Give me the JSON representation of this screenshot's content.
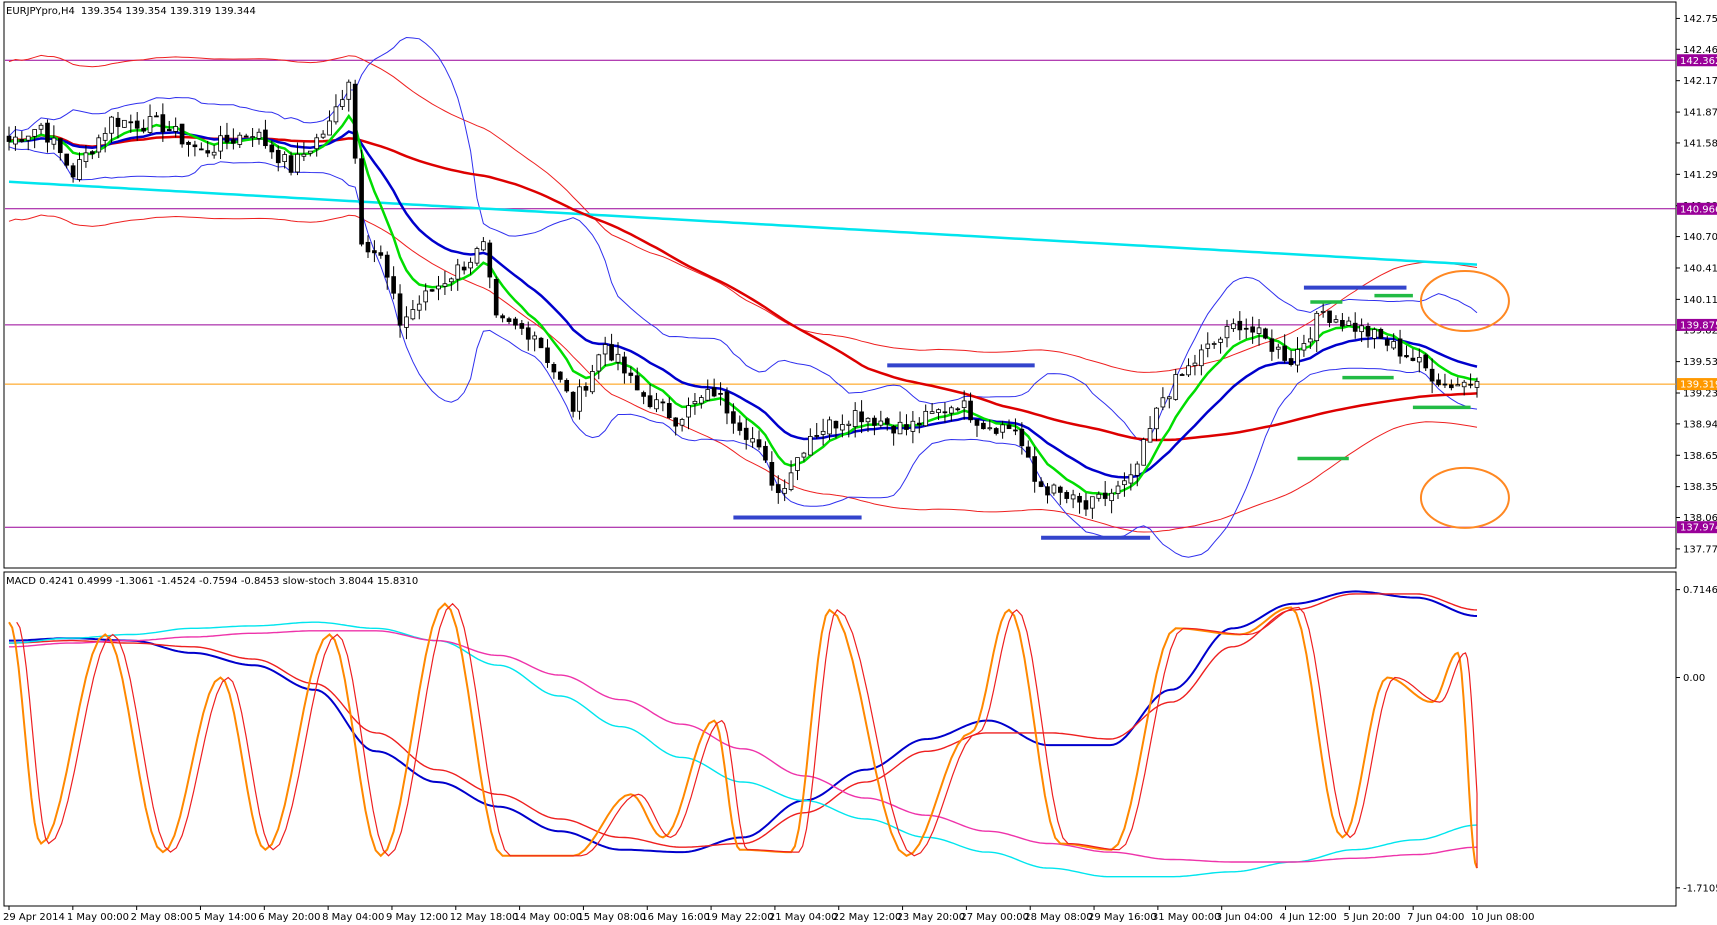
{
  "header": {
    "symbol": "EURJPYpro,H4",
    "ohlc": "139.354 139.354 139.319 139.344"
  },
  "indicator_header": "MACD 0.4241 0.4999 -1.3061 -1.4524 -0.7594 -0.8453 slow-stoch 3.8044 15.8310",
  "colors": {
    "bull": "#ffffff",
    "bear": "#000000",
    "candle_outline": "#000000",
    "ema_fast": "#00dd00",
    "ema_mid": "#0000cc",
    "sma_slow": "#dd0000",
    "sma_long": "#00e5ee",
    "bollinger": "#3030ee",
    "envelope": "#ee2020",
    "hline": "#990099",
    "price_line": "#ff9900",
    "markup_blue": "#3344cc",
    "markup_green": "#22bb44",
    "circle": "#ff8822",
    "macd_main": "#0000cc",
    "macd_signal": "#ee2020",
    "stoch": "#ff8800",
    "macd_cyan": "#00e5ee",
    "macd_magenta": "#ee33aa"
  },
  "chart_data": [
    {
      "type": "candlestick",
      "title": "EURJPYpro,H4",
      "ylim": [
        137.6,
        142.9
      ],
      "price_ticks": [
        "142.755",
        "142.465",
        "142.170",
        "141.875",
        "141.585",
        "141.290",
        "140.995",
        "140.705",
        "140.410",
        "140.115",
        "139.825",
        "139.530",
        "139.235",
        "138.945",
        "138.650",
        "138.355",
        "138.065",
        "137.770"
      ],
      "horizontal_levels": [
        {
          "label": "142.362",
          "value": 142.362,
          "kind": "level"
        },
        {
          "label": "140.966",
          "value": 140.966,
          "kind": "level"
        },
        {
          "label": "139.875",
          "value": 139.875,
          "kind": "level"
        },
        {
          "label": "139.319",
          "value": 139.319,
          "kind": "current"
        },
        {
          "label": "137.974",
          "value": 137.974,
          "kind": "level"
        }
      ],
      "x_labels": [
        "29 Apr 2014",
        "1 May 00:00",
        "2 May 08:00",
        "5 May 14:00",
        "6 May 20:00",
        "8 May 04:00",
        "9 May 12:00",
        "12 May 18:00",
        "14 May 00:00",
        "15 May 08:00",
        "16 May 16:00",
        "19 May 22:00",
        "21 May 04:00",
        "22 May 12:00",
        "23 May 20:00",
        "27 May 00:00",
        "28 May 08:00",
        "29 May 16:00",
        "31 May 00:00",
        "3 Jun 04:00",
        "4 Jun 12:00",
        "5 Jun 20:00",
        "7 Jun 04:00",
        "10 Jun 08:00"
      ],
      "bars": 230,
      "close_anchors": [
        [
          0,
          141.6
        ],
        [
          5,
          141.75
        ],
        [
          10,
          141.3
        ],
        [
          16,
          141.8
        ],
        [
          24,
          141.75
        ],
        [
          30,
          141.5
        ],
        [
          38,
          141.7
        ],
        [
          44,
          141.35
        ],
        [
          50,
          141.75
        ],
        [
          53,
          142.2
        ],
        [
          55,
          140.7
        ],
        [
          58,
          140.5
        ],
        [
          61,
          139.9
        ],
        [
          66,
          140.2
        ],
        [
          74,
          140.6
        ],
        [
          76,
          139.9
        ],
        [
          82,
          139.8
        ],
        [
          88,
          139.1
        ],
        [
          93,
          139.7
        ],
        [
          98,
          139.25
        ],
        [
          104,
          139.0
        ],
        [
          110,
          139.25
        ],
        [
          116,
          138.8
        ],
        [
          120,
          138.3
        ],
        [
          125,
          138.85
        ],
        [
          132,
          139.05
        ],
        [
          140,
          138.9
        ],
        [
          148,
          139.15
        ],
        [
          152,
          138.95
        ],
        [
          157,
          138.9
        ],
        [
          160,
          138.4
        ],
        [
          168,
          138.15
        ],
        [
          175,
          138.4
        ],
        [
          180,
          139.2
        ],
        [
          186,
          139.6
        ],
        [
          192,
          139.9
        ],
        [
          200,
          139.55
        ],
        [
          205,
          140.0
        ],
        [
          212,
          139.8
        ],
        [
          218,
          139.6
        ],
        [
          224,
          139.32
        ],
        [
          229,
          139.344
        ]
      ],
      "overlay_lines": [
        {
          "name": "",
          "key": "ema_fast",
          "period": 8
        },
        {
          "name": "",
          "key": "ema_mid",
          "period": 21
        },
        {
          "name": "",
          "key": "sma_slow",
          "period": 80
        },
        {
          "name": "",
          "key": "sma_long",
          "period": 300
        }
      ],
      "markups": {
        "blue_segments": [
          [
            138.065,
            113,
            133
          ],
          [
            139.495,
            137,
            160
          ],
          [
            137.875,
            161,
            178
          ],
          [
            140.225,
            202,
            218
          ]
        ],
        "green_segments": [
          [
            140.09,
            203,
            208
          ],
          [
            140.15,
            213,
            219
          ],
          [
            139.38,
            208,
            216
          ],
          [
            138.62,
            201,
            209
          ],
          [
            139.1,
            219,
            228
          ]
        ],
        "circles": [
          [
            224,
            140.1
          ],
          [
            224,
            138.25
          ]
        ]
      }
    },
    {
      "type": "line",
      "title": "MACD / slow-stoch",
      "ylim": [
        -1.85,
        0.85
      ],
      "ticks": [
        "0.7146",
        "0.00",
        "-1.7105"
      ],
      "series": [
        {
          "name": "",
          "key": "macd_main",
          "values": [
            0.3,
            0.32,
            0.3,
            0.2,
            0.1,
            -0.1,
            -0.6,
            -0.85,
            -1.05,
            -1.25,
            -1.4,
            -1.42,
            -1.3,
            -1.0,
            -0.75,
            -0.5,
            -0.35,
            -0.55,
            -0.55,
            -0.1,
            0.4,
            0.6,
            0.7,
            0.65,
            0.5
          ]
        },
        {
          "name": "",
          "key": "macd_signal",
          "values": [
            0.28,
            0.3,
            0.28,
            0.25,
            0.15,
            -0.05,
            -0.45,
            -0.75,
            -0.95,
            -1.15,
            -1.3,
            -1.38,
            -1.35,
            -1.1,
            -0.85,
            -0.6,
            -0.45,
            -0.45,
            -0.5,
            -0.2,
            0.25,
            0.55,
            0.68,
            0.68,
            0.55
          ]
        },
        {
          "name": "",
          "key": "macd_cyan",
          "values": [
            0.28,
            0.32,
            0.35,
            0.4,
            0.42,
            0.45,
            0.4,
            0.3,
            0.1,
            -0.15,
            -0.4,
            -0.65,
            -0.85,
            -1.0,
            -1.15,
            -1.3,
            -1.42,
            -1.55,
            -1.62,
            -1.62,
            -1.58,
            -1.5,
            -1.4,
            -1.32,
            -1.2
          ]
        },
        {
          "name": "",
          "key": "macd_magenta",
          "values": [
            0.25,
            0.28,
            0.3,
            0.33,
            0.36,
            0.38,
            0.38,
            0.3,
            0.18,
            0.02,
            -0.18,
            -0.38,
            -0.58,
            -0.8,
            -0.98,
            -1.12,
            -1.25,
            -1.35,
            -1.42,
            -1.48,
            -1.5,
            -1.5,
            -1.47,
            -1.44,
            -1.38
          ]
        }
      ],
      "stoch_cycles": [
        [
          0,
          0.45
        ],
        [
          5,
          -1.35
        ],
        [
          15,
          0.35
        ],
        [
          24,
          -1.42
        ],
        [
          33,
          0.0
        ],
        [
          40,
          -1.4
        ],
        [
          50,
          0.35
        ],
        [
          58,
          -1.45
        ],
        [
          68,
          0.6
        ],
        [
          77,
          -1.45
        ],
        [
          88,
          -1.45
        ],
        [
          97,
          -0.95
        ],
        [
          102,
          -1.3
        ],
        [
          110,
          -0.35
        ],
        [
          114,
          -1.4
        ],
        [
          122,
          -1.42
        ],
        [
          128,
          0.55
        ],
        [
          140,
          -1.45
        ],
        [
          150,
          -0.45
        ],
        [
          156,
          0.55
        ],
        [
          164,
          -1.35
        ],
        [
          172,
          -1.4
        ],
        [
          182,
          0.4
        ],
        [
          192,
          0.35
        ],
        [
          200,
          0.57
        ],
        [
          208,
          -1.3
        ],
        [
          215,
          0.0
        ],
        [
          222,
          -0.2
        ],
        [
          226,
          0.2
        ],
        [
          229,
          -1.55
        ]
      ]
    }
  ]
}
